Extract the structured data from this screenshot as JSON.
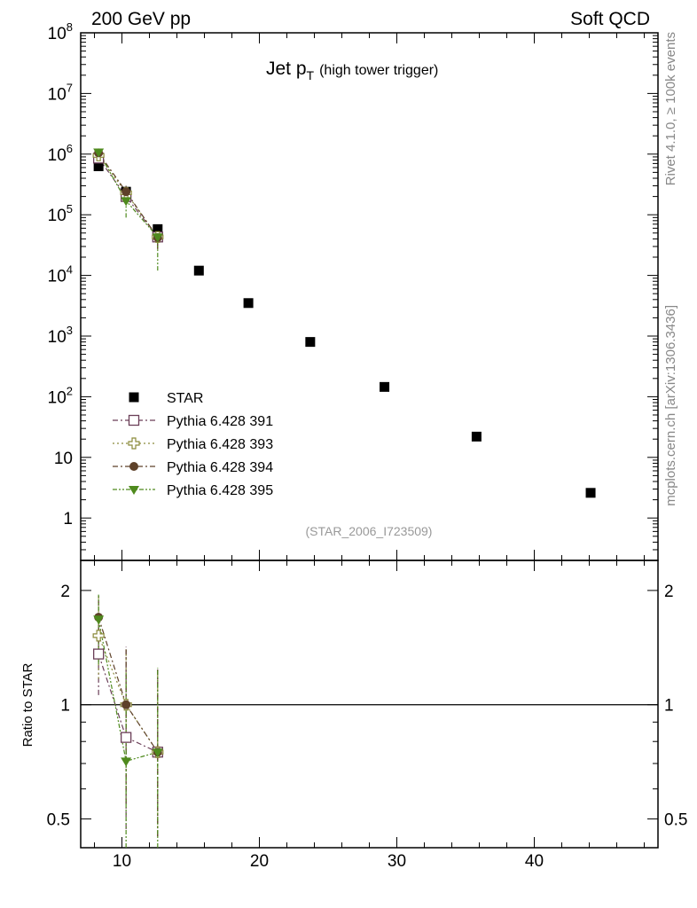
{
  "header": {
    "left": "200 GeV pp",
    "right": "Soft QCD"
  },
  "side_text": {
    "rivet": "Rivet 4.1.0, ≥ 100k events",
    "mcplots": "mcplots.cern.ch [arXiv:1306.3436]"
  },
  "colors": {
    "star": "#000000",
    "p391": "#6b3f58",
    "p393": "#8a8a3a",
    "p394": "#5e4129",
    "p395": "#4f8a1e"
  },
  "chart_data": [
    {
      "type": "scatter",
      "title": "Jet p",
      "title_sub": "T",
      "title_extra": "(high tower trigger)",
      "watermark": "(STAR_2006_I723509)",
      "yscale": "log",
      "xlim": [
        7,
        49
      ],
      "ylim": [
        0.2,
        100000000
      ],
      "ytick_labels": [
        {
          "value": 100000000,
          "base": "10",
          "exp": "8"
        },
        {
          "value": 10000000,
          "base": "10",
          "exp": "7"
        },
        {
          "value": 1000000,
          "base": "10",
          "exp": "6"
        },
        {
          "value": 100000,
          "base": "10",
          "exp": "5"
        },
        {
          "value": 10000,
          "base": "10",
          "exp": "4"
        },
        {
          "value": 1000,
          "base": "10",
          "exp": "3"
        },
        {
          "value": 100,
          "base": "10",
          "exp": "2"
        },
        {
          "value": 10,
          "base": "10",
          "exp": ""
        },
        {
          "value": 1,
          "base": "1",
          "exp": ""
        }
      ],
      "legend_position": "bottom-left",
      "series": [
        {
          "name": "STAR",
          "key": "star",
          "marker": "square",
          "line": "none",
          "x": [
            8.3,
            10.3,
            12.6,
            15.6,
            19.2,
            23.7,
            29.1,
            35.8,
            44.1
          ],
          "y": [
            630000,
            240000,
            58000,
            12000,
            3500,
            800,
            145,
            22,
            2.6
          ]
        },
        {
          "name": "Pythia 6.428 391",
          "key": "p391",
          "marker": "open-square",
          "line": "dash-dot",
          "x": [
            8.3,
            10.3,
            12.6
          ],
          "y": [
            860000,
            200000,
            43000
          ],
          "yerr_lo": [
            80000,
            40000,
            15000
          ],
          "yerr_hi": [
            80000,
            40000,
            15000
          ]
        },
        {
          "name": "Pythia 6.428 393",
          "key": "p393",
          "marker": "open-cross",
          "line": "dotted",
          "x": [
            8.3,
            10.3,
            12.6
          ],
          "y": [
            950000,
            230000,
            43000
          ],
          "yerr_lo": [
            100000,
            50000,
            15000
          ],
          "yerr_hi": [
            100000,
            50000,
            15000
          ]
        },
        {
          "name": "Pythia 6.428 394",
          "key": "p394",
          "marker": "circle",
          "line": "dash-dot",
          "x": [
            8.3,
            10.3,
            12.6
          ],
          "y": [
            1050000,
            240000,
            42000
          ],
          "yerr_lo": [
            100000,
            60000,
            15000
          ],
          "yerr_hi": [
            100000,
            60000,
            15000
          ]
        },
        {
          "name": "Pythia 6.428 395",
          "key": "p395",
          "marker": "triangle-down",
          "line": "dash-dot-dot",
          "x": [
            8.3,
            10.3,
            12.6
          ],
          "y": [
            1080000,
            170000,
            43000
          ],
          "yerr_lo": [
            120000,
            80000,
            31000
          ],
          "yerr_hi": [
            120000,
            60000,
            20000
          ]
        }
      ]
    },
    {
      "type": "scatter",
      "ylabel": "Ratio to STAR",
      "yscale": "log",
      "xlim": [
        7,
        49
      ],
      "ylim": [
        0.42,
        2.4
      ],
      "xtick_labels": [
        "10",
        "20",
        "30",
        "40"
      ],
      "xtick_values": [
        10,
        20,
        30,
        40
      ],
      "ytick_labels": [
        "2",
        "1",
        "0.5"
      ],
      "ytick_values": [
        2,
        1,
        0.5
      ],
      "reference_line": 1,
      "series": [
        {
          "name": "Pythia 6.428 391",
          "key": "p391",
          "marker": "open-square",
          "line": "dash-dot",
          "x": [
            8.3,
            10.3,
            12.6
          ],
          "y": [
            1.36,
            0.82,
            0.75
          ],
          "yerr_lo": [
            0.3,
            0.35,
            0.3
          ],
          "yerr_hi": [
            0.3,
            0.6,
            0.5
          ]
        },
        {
          "name": "Pythia 6.428 393",
          "key": "p393",
          "marker": "open-cross",
          "line": "dotted",
          "x": [
            8.3,
            10.3,
            12.6
          ],
          "y": [
            1.52,
            1.0,
            0.75
          ],
          "yerr_lo": [
            0.35,
            0.4,
            0.3
          ],
          "yerr_hi": [
            0.4,
            0.4,
            0.5
          ]
        },
        {
          "name": "Pythia 6.428 394",
          "key": "p394",
          "marker": "circle",
          "line": "dash-dot",
          "x": [
            8.3,
            10.3,
            12.6
          ],
          "y": [
            1.7,
            1.0,
            0.75
          ],
          "yerr_lo": [
            0.35,
            0.45,
            0.3
          ],
          "yerr_hi": [
            0.25,
            0.4,
            0.5
          ]
        },
        {
          "name": "Pythia 6.428 395",
          "key": "p395",
          "marker": "triangle-down",
          "line": "dash-dot-dot",
          "x": [
            8.3,
            10.3,
            12.6
          ],
          "y": [
            1.68,
            0.71,
            0.75
          ],
          "yerr_lo": [
            0.4,
            0.3,
            0.33
          ],
          "yerr_hi": [
            0.27,
            0.5,
            0.5
          ]
        }
      ]
    }
  ]
}
